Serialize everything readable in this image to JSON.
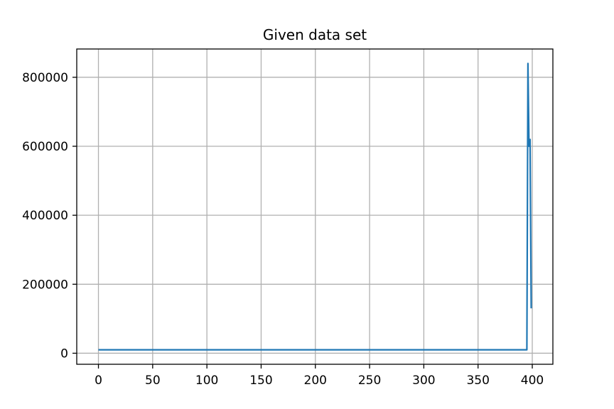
{
  "chart_data": {
    "type": "line",
    "title": "Given data set",
    "xlabel": "",
    "ylabel": "",
    "xlim": [
      -20,
      419
    ],
    "ylim": [
      -32000,
      882000
    ],
    "x_ticks": [
      0,
      50,
      100,
      150,
      200,
      250,
      300,
      350,
      400
    ],
    "y_ticks": [
      0,
      200000,
      400000,
      600000,
      800000
    ],
    "x_tick_labels": [
      "0",
      "50",
      "100",
      "150",
      "200",
      "250",
      "300",
      "350",
      "400"
    ],
    "y_tick_labels": [
      "0",
      "200000",
      "400000",
      "600000",
      "800000"
    ],
    "grid": true,
    "line_color": "#1f77b4",
    "grid_color": "#b0b0b0",
    "series": [
      {
        "x": [
          0,
          50,
          100,
          150,
          200,
          250,
          300,
          350,
          394,
          395,
          396,
          397,
          398,
          399
        ],
        "values": [
          10000,
          10000,
          10000,
          10000,
          10000,
          10000,
          10000,
          10000,
          10000,
          10000,
          840000,
          600000,
          620000,
          130000
        ]
      }
    ]
  }
}
